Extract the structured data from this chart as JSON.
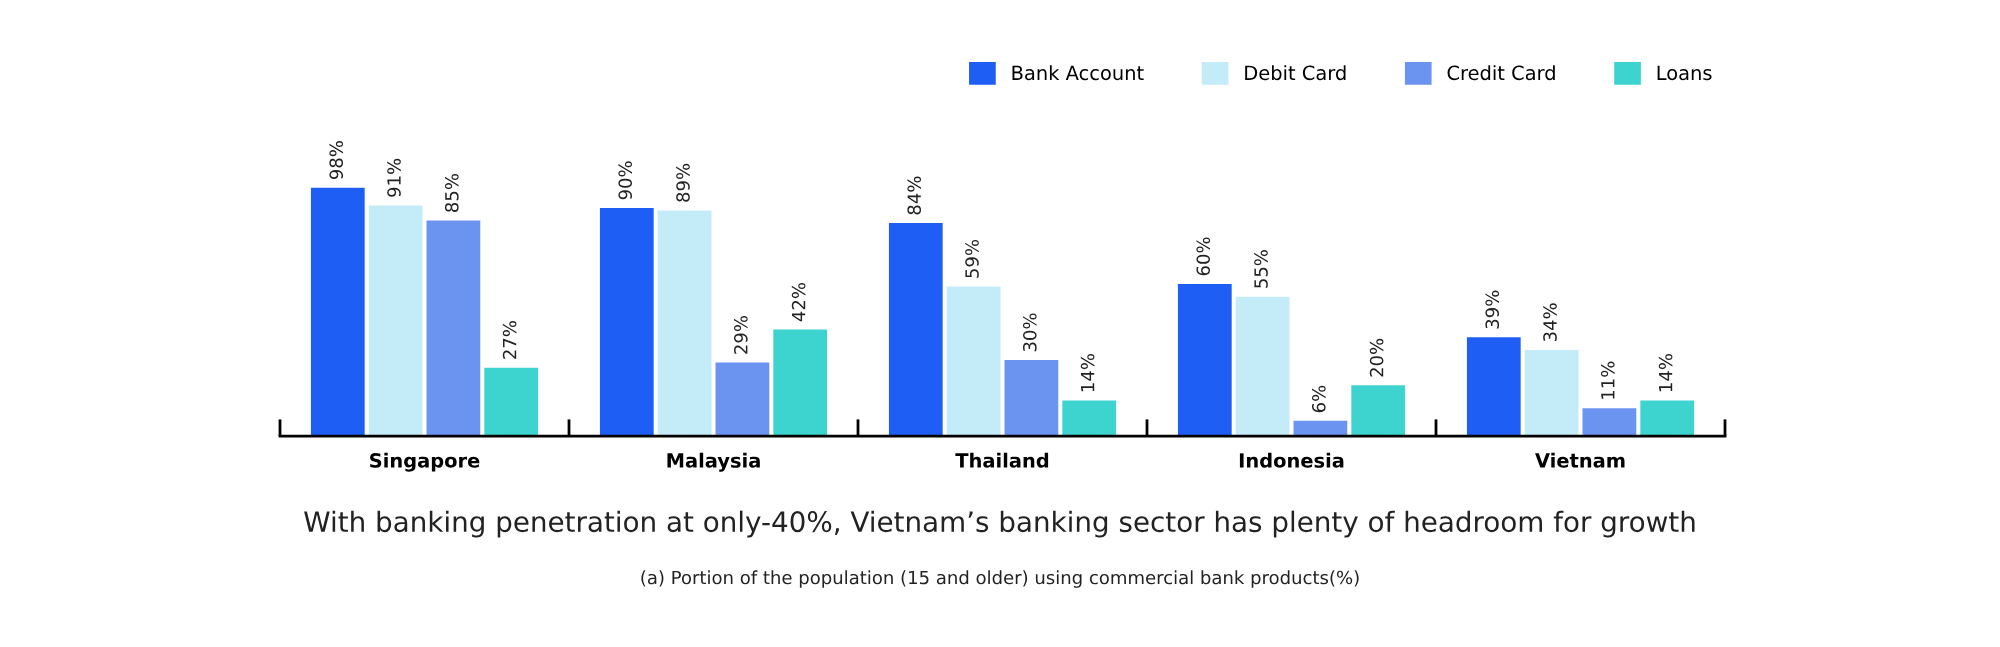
{
  "chart_data": {
    "type": "bar",
    "title": "With banking penetration at only-40%, Vietnam’s banking sector has plenty of headroom for growth",
    "annotations": [
      "(a) Portion of the population (15 and older) using commercial bank products(%)"
    ],
    "categories": [
      "Singapore",
      "Malaysia",
      "Thailand",
      "Indonesia",
      "Vietnam"
    ],
    "series": [
      {
        "name": "Bank Account",
        "color": "#1f5ef5",
        "values": [
          98,
          90,
          84,
          60,
          39
        ],
        "value_labels": [
          "98%",
          "90%",
          "84%",
          "60%",
          "39%"
        ]
      },
      {
        "name": "Debit Card",
        "color": "#c3ebf8",
        "values": [
          91,
          89,
          59,
          55,
          34
        ],
        "value_labels": [
          "91%",
          "89%",
          "59%",
          "55%",
          "34%"
        ]
      },
      {
        "name": "Credit Card",
        "color": "#6b94f0",
        "values": [
          85,
          29,
          30,
          6,
          11
        ],
        "value_labels": [
          "85%",
          "29%",
          "30%",
          "6%",
          "11%"
        ]
      },
      {
        "name": "Loans",
        "color": "#3dd4d0",
        "values": [
          27,
          42,
          14,
          20,
          14
        ],
        "value_labels": [
          "27%",
          "42%",
          "14%",
          "20%",
          "14%"
        ]
      }
    ],
    "legend": "top right",
    "grid": false
  }
}
